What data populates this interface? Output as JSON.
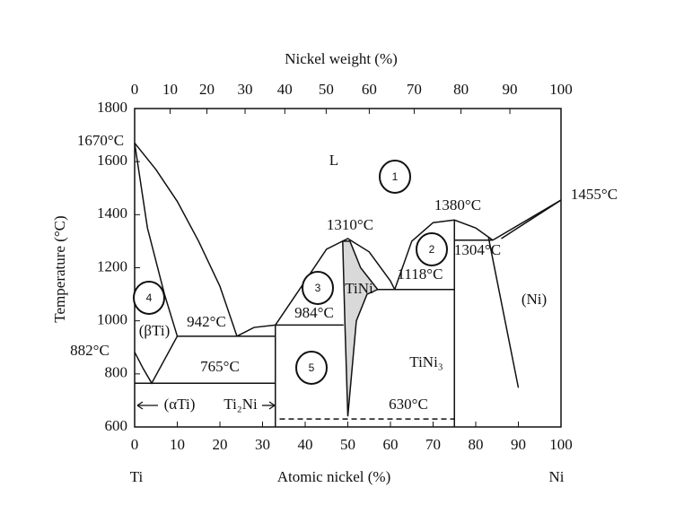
{
  "chart_data": {
    "type": "line",
    "title": "Nickel weight (%)",
    "xlabel": "Atomic nickel (%)",
    "ylabel": "Temperature (°C)",
    "end_labels": [
      "Ti",
      "Ni"
    ],
    "xlim": [
      0,
      100
    ],
    "xticks": [
      0,
      10,
      20,
      30,
      40,
      50,
      60,
      70,
      80,
      90,
      100
    ],
    "x2ticks": [
      0,
      {
        "value": 8.31,
        "label": "10"
      },
      {
        "value": 16.94,
        "label": "20"
      },
      {
        "value": 25.9,
        "label": "30"
      },
      {
        "value": 35.22,
        "label": "40"
      },
      {
        "value": 44.92,
        "label": "50"
      },
      {
        "value": 55.03,
        "label": "60"
      },
      {
        "value": 65.56,
        "label": "70"
      },
      {
        "value": 76.54,
        "label": "80"
      },
      {
        "value": 88.01,
        "label": "90"
      },
      100
    ],
    "ylim": [
      600,
      1800
    ],
    "yticks": [
      600,
      800,
      1000,
      1200,
      1400,
      1600,
      1800
    ],
    "series": [
      {
        "color": "#111",
        "x": [
          0,
          5,
          10,
          15,
          20,
          24
        ],
        "values": [
          1670,
          1570,
          1450,
          1300,
          1130,
          942
        ]
      },
      {
        "color": "#111",
        "x": [
          0,
          3,
          7,
          10
        ],
        "values": [
          1670,
          1350,
          1100,
          942
        ]
      },
      {
        "color": "#111",
        "x": [
          0,
          2,
          4,
          10
        ],
        "values": [
          882,
          820,
          765,
          942
        ]
      },
      {
        "color": "#111",
        "x": [
          10,
          33
        ],
        "values": [
          942,
          942
        ]
      },
      {
        "color": "#111",
        "x": [
          24,
          28,
          33
        ],
        "values": [
          942,
          975,
          984
        ]
      },
      {
        "color": "#111",
        "x": [
          33,
          49
        ],
        "values": [
          984,
          984
        ]
      },
      {
        "color": "#111",
        "x": [
          0,
          33
        ],
        "values": [
          765,
          765
        ]
      },
      {
        "color": "#111",
        "x": [
          33,
          33
        ],
        "values": [
          600,
          984
        ]
      },
      {
        "color": "#111",
        "x": [
          33,
          40,
          45,
          50,
          55,
          60,
          61
        ],
        "values": [
          984,
          1150,
          1270,
          1310,
          1260,
          1150,
          1118
        ]
      },
      {
        "color": "#111",
        "fill": "#d9d9d9",
        "x": [
          48.8,
          49.3,
          50,
          52,
          54.5,
          57,
          53,
          50.5
        ],
        "values": [
          1300,
          1000,
          640,
          1000,
          1100,
          1118,
          1200,
          1300
        ]
      },
      {
        "color": "#111",
        "x": [
          57,
          75
        ],
        "values": [
          1118,
          1118
        ]
      },
      {
        "color": "#111",
        "x": [
          75,
          75
        ],
        "values": [
          600,
          1380
        ]
      },
      {
        "color": "#111",
        "x": [
          61,
          65,
          70,
          75,
          80,
          84
        ],
        "values": [
          1118,
          1300,
          1370,
          1380,
          1350,
          1304
        ]
      },
      {
        "color": "#111",
        "x": [
          75,
          84
        ],
        "values": [
          1304,
          1304
        ]
      },
      {
        "color": "#111",
        "x": [
          84,
          100
        ],
        "values": [
          1304,
          1455
        ]
      },
      {
        "color": "#111",
        "x": [
          86,
          100
        ],
        "values": [
          1310,
          1455
        ]
      },
      {
        "color": "#111",
        "x": [
          83,
          90
        ],
        "values": [
          1313,
          748
        ]
      },
      {
        "color": "#111",
        "dash": true,
        "x": [
          34,
          75
        ],
        "values": [
          630,
          630
        ]
      }
    ],
    "annotations": [
      "L",
      "1670°C",
      "1455°C",
      "882°C",
      "1310°C",
      "1380°C",
      "1304°C",
      "1118°C",
      "942°C",
      "984°C",
      "765°C",
      "(βTi)",
      "TiNi",
      "(Ni)",
      "TiNi₃",
      "630°C",
      "(αTi)",
      "Ti₂Ni"
    ],
    "markers": [
      "1",
      "2",
      "3",
      "4",
      "5"
    ]
  }
}
